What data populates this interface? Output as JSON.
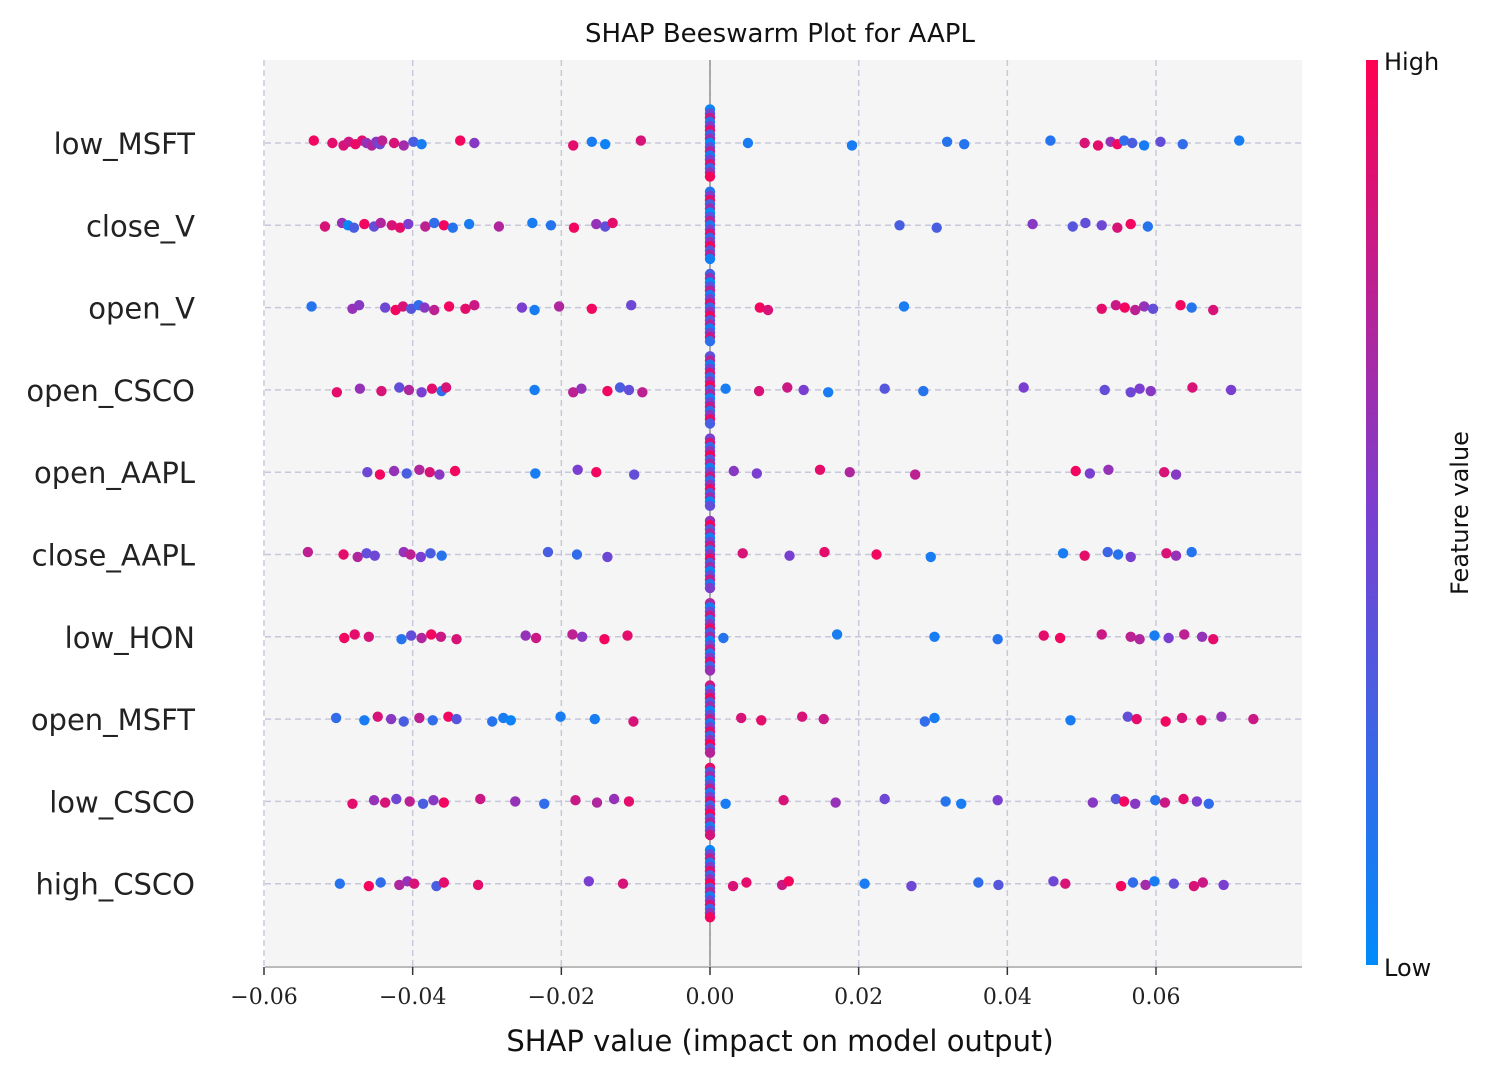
{
  "chart_data": {
    "type": "scatter",
    "title": "SHAP Beeswarm Plot for AAPL",
    "xlabel": "SHAP value (impact on model output)",
    "ylabel": "",
    "xlim": [
      -0.06,
      0.0795
    ],
    "xticks": [
      "−0.06",
      "−0.04",
      "−0.02",
      "0.00",
      "0.02",
      "0.04",
      "0.06"
    ],
    "xtick_values": [
      -0.06,
      -0.04,
      -0.02,
      0.0,
      0.02,
      0.04,
      0.06
    ],
    "grid": true,
    "colorbar": {
      "label": "Feature value",
      "high": "High",
      "low": "Low",
      "low_color": "#008bfb",
      "high_color": "#ff0052",
      "mid_color": "#7a3fd0"
    },
    "features": [
      "low_MSFT",
      "close_V",
      "open_V",
      "open_CSCO",
      "open_AAPL",
      "close_AAPL",
      "low_HON",
      "open_MSFT",
      "low_CSCO",
      "high_CSCO"
    ],
    "series": [
      {
        "feature": "low_MSFT",
        "x": [
          -0.0533,
          -0.0508,
          -0.0493,
          -0.0486,
          -0.0477,
          -0.0468,
          -0.0462,
          -0.0455,
          -0.0449,
          -0.0444,
          -0.0441,
          -0.0425,
          -0.0412,
          -0.0399,
          -0.0388,
          -0.0336,
          -0.0317,
          -0.0184,
          -0.0159,
          -0.0141,
          -0.0093,
          0.0051,
          0.0191,
          0.0319,
          0.0342,
          0.0458,
          0.0504,
          0.0522,
          0.0539,
          0.0548,
          0.0557,
          0.0568,
          0.0584,
          0.0606,
          0.0636,
          0.0712
        ],
        "c": [
          0.95,
          0.9,
          0.85,
          0.8,
          0.92,
          0.88,
          0.6,
          0.7,
          0.55,
          0.45,
          0.75,
          0.85,
          0.65,
          0.3,
          0.1,
          0.95,
          0.55,
          0.9,
          0.1,
          0.05,
          0.85,
          0.1,
          0.1,
          0.15,
          0.15,
          0.15,
          0.85,
          0.9,
          0.6,
          0.95,
          0.2,
          0.3,
          0.1,
          0.4,
          0.2,
          0.1
        ]
      },
      {
        "feature": "close_V",
        "x": [
          -0.0518,
          -0.0495,
          -0.0487,
          -0.0479,
          -0.0465,
          -0.0452,
          -0.0443,
          -0.0428,
          -0.0417,
          -0.0406,
          -0.0383,
          -0.0371,
          -0.0358,
          -0.0346,
          -0.0324,
          -0.0284,
          -0.0239,
          -0.0214,
          -0.0183,
          -0.0153,
          -0.0141,
          -0.0131,
          0.0255,
          0.0305,
          0.0434,
          0.0488,
          0.0505,
          0.0527,
          0.0548,
          0.0566,
          0.0589
        ],
        "c": [
          0.85,
          0.6,
          0.05,
          0.3,
          0.95,
          0.4,
          0.7,
          0.85,
          0.9,
          0.5,
          0.75,
          0.2,
          0.95,
          0.15,
          0.1,
          0.7,
          0.1,
          0.15,
          0.95,
          0.6,
          0.4,
          0.9,
          0.3,
          0.3,
          0.55,
          0.35,
          0.4,
          0.45,
          0.85,
          0.95,
          0.15
        ]
      },
      {
        "feature": "open_V",
        "x": [
          -0.0536,
          -0.0481,
          -0.0472,
          -0.0437,
          -0.0423,
          -0.0413,
          -0.0402,
          -0.0392,
          -0.0384,
          -0.0371,
          -0.0351,
          -0.0329,
          -0.0317,
          -0.0253,
          -0.0236,
          -0.0203,
          -0.0159,
          -0.0106,
          0.0067,
          0.0078,
          0.0261,
          0.0527,
          0.0546,
          0.0558,
          0.0572,
          0.0584,
          0.0596,
          0.0633,
          0.0648,
          0.0677
        ],
        "c": [
          0.15,
          0.6,
          0.55,
          0.45,
          0.95,
          0.85,
          0.35,
          0.2,
          0.55,
          0.75,
          0.95,
          0.9,
          0.8,
          0.5,
          0.1,
          0.7,
          0.95,
          0.45,
          0.95,
          0.85,
          0.1,
          0.9,
          0.8,
          0.95,
          0.75,
          0.6,
          0.4,
          0.95,
          0.15,
          0.85
        ]
      },
      {
        "feature": "open_CSCO",
        "x": [
          -0.0502,
          -0.0471,
          -0.0442,
          -0.0418,
          -0.0405,
          -0.0388,
          -0.0374,
          -0.0361,
          -0.0355,
          -0.0236,
          -0.0184,
          -0.0173,
          -0.0138,
          -0.0121,
          -0.0109,
          -0.0091,
          0.0021,
          0.0066,
          0.0104,
          0.0126,
          0.0159,
          0.0235,
          0.0287,
          0.0422,
          0.0531,
          0.0566,
          0.0578,
          0.0593,
          0.0649,
          0.0701
        ],
        "c": [
          0.9,
          0.6,
          0.85,
          0.4,
          0.7,
          0.5,
          0.9,
          0.2,
          0.85,
          0.1,
          0.75,
          0.6,
          0.95,
          0.3,
          0.4,
          0.75,
          0.1,
          0.85,
          0.8,
          0.5,
          0.1,
          0.35,
          0.15,
          0.5,
          0.4,
          0.45,
          0.5,
          0.55,
          0.85,
          0.5
        ]
      },
      {
        "feature": "open_AAPL",
        "x": [
          -0.0461,
          -0.0444,
          -0.0425,
          -0.0408,
          -0.0391,
          -0.0377,
          -0.0364,
          -0.0343,
          -0.0235,
          -0.0178,
          -0.0153,
          -0.0102,
          0.0032,
          0.0063,
          0.0148,
          0.0188,
          0.0276,
          0.0492,
          0.0511,
          0.0536,
          0.0611,
          0.0627
        ],
        "c": [
          0.45,
          0.95,
          0.6,
          0.3,
          0.7,
          0.85,
          0.55,
          0.95,
          0.1,
          0.5,
          0.95,
          0.4,
          0.55,
          0.5,
          0.9,
          0.7,
          0.75,
          0.95,
          0.5,
          0.6,
          0.85,
          0.55
        ]
      },
      {
        "feature": "close_AAPL",
        "x": [
          -0.0541,
          -0.0493,
          -0.0474,
          -0.0462,
          -0.0451,
          -0.0412,
          -0.0403,
          -0.0389,
          -0.0376,
          -0.0361,
          -0.0218,
          -0.0179,
          -0.0138,
          0.0044,
          0.0107,
          0.0154,
          0.0224,
          0.0297,
          0.0475,
          0.0504,
          0.0535,
          0.0549,
          0.0566,
          0.0614,
          0.0627,
          0.0648
        ],
        "c": [
          0.75,
          0.9,
          0.7,
          0.4,
          0.45,
          0.6,
          0.75,
          0.5,
          0.3,
          0.15,
          0.3,
          0.2,
          0.45,
          0.85,
          0.5,
          0.9,
          0.95,
          0.1,
          0.1,
          0.9,
          0.25,
          0.15,
          0.5,
          0.85,
          0.6,
          0.15
        ]
      },
      {
        "feature": "low_HON",
        "x": [
          -0.0492,
          -0.0478,
          -0.0459,
          -0.0415,
          -0.0402,
          -0.0388,
          -0.0375,
          -0.0362,
          -0.0341,
          -0.0248,
          -0.0234,
          -0.0185,
          -0.0172,
          -0.0142,
          -0.0111,
          0.0018,
          0.0171,
          0.0302,
          0.0387,
          0.0449,
          0.0471,
          0.0527,
          0.0566,
          0.0578,
          0.0598,
          0.0617,
          0.0638,
          0.0662,
          0.0677
        ],
        "c": [
          0.95,
          0.9,
          0.85,
          0.15,
          0.4,
          0.7,
          0.95,
          0.8,
          0.85,
          0.6,
          0.8,
          0.75,
          0.55,
          0.95,
          0.9,
          0.15,
          0.1,
          0.1,
          0.15,
          0.9,
          0.95,
          0.8,
          0.75,
          0.7,
          0.1,
          0.5,
          0.75,
          0.6,
          0.9
        ]
      },
      {
        "feature": "open_MSFT",
        "x": [
          -0.0503,
          -0.0465,
          -0.0447,
          -0.0429,
          -0.0412,
          -0.0391,
          -0.0373,
          -0.0352,
          -0.0341,
          -0.0293,
          -0.0278,
          -0.0268,
          -0.0201,
          -0.0155,
          -0.0103,
          0.0042,
          0.0069,
          0.0124,
          0.0153,
          0.0289,
          0.0302,
          0.0485,
          0.0562,
          0.0574,
          0.0613,
          0.0635,
          0.0661,
          0.0688,
          0.0731
        ],
        "c": [
          0.2,
          0.1,
          0.85,
          0.55,
          0.3,
          0.75,
          0.2,
          0.95,
          0.35,
          0.15,
          0.1,
          0.05,
          0.1,
          0.1,
          0.85,
          0.85,
          0.9,
          0.85,
          0.8,
          0.2,
          0.1,
          0.1,
          0.4,
          0.9,
          0.95,
          0.85,
          0.9,
          0.6,
          0.8
        ]
      },
      {
        "feature": "low_CSCO",
        "x": [
          -0.0481,
          -0.0452,
          -0.0437,
          -0.0422,
          -0.0404,
          -0.0386,
          -0.0372,
          -0.0358,
          -0.0309,
          -0.0262,
          -0.0223,
          -0.0181,
          -0.0152,
          -0.0129,
          -0.0109,
          0.0021,
          0.0099,
          0.0169,
          0.0235,
          0.0317,
          0.0338,
          0.0387,
          0.0515,
          0.0546,
          0.0557,
          0.0572,
          0.0599,
          0.0612,
          0.0637,
          0.0655,
          0.0671
        ],
        "c": [
          0.9,
          0.6,
          0.85,
          0.45,
          0.75,
          0.3,
          0.55,
          0.95,
          0.8,
          0.6,
          0.2,
          0.8,
          0.7,
          0.6,
          0.9,
          0.1,
          0.85,
          0.6,
          0.45,
          0.15,
          0.1,
          0.5,
          0.55,
          0.35,
          0.95,
          0.55,
          0.15,
          0.8,
          0.9,
          0.5,
          0.2
        ]
      },
      {
        "feature": "high_CSCO",
        "x": [
          -0.0498,
          -0.0459,
          -0.0443,
          -0.0418,
          -0.0407,
          -0.0398,
          -0.0368,
          -0.0358,
          -0.0312,
          -0.0163,
          -0.0117,
          0.0031,
          0.0049,
          0.0097,
          0.0106,
          0.0208,
          0.0271,
          0.0361,
          0.0388,
          0.0462,
          0.0478,
          0.0553,
          0.0569,
          0.0586,
          0.0598,
          0.0624,
          0.0651,
          0.0663,
          0.0691
        ],
        "c": [
          0.15,
          0.95,
          0.2,
          0.7,
          0.6,
          0.85,
          0.3,
          0.9,
          0.9,
          0.5,
          0.85,
          0.85,
          0.9,
          0.8,
          0.95,
          0.1,
          0.45,
          0.2,
          0.35,
          0.45,
          0.85,
          0.95,
          0.2,
          0.65,
          0.1,
          0.4,
          0.85,
          0.8,
          0.5
        ]
      }
    ]
  }
}
